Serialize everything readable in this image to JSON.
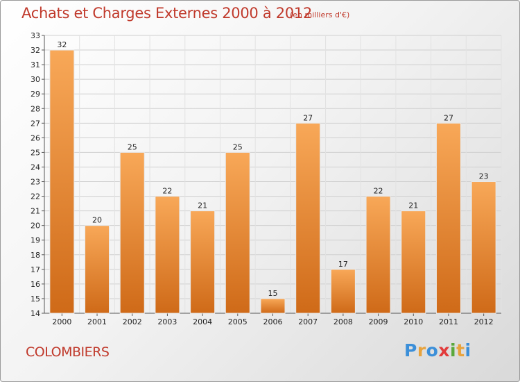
{
  "header": {
    "title": "Achats et Charges Externes 2000 à 2012",
    "subtitle": "(en milliers d'€)"
  },
  "footer": {
    "commune": "COLOMBIERS",
    "logo": "Proxiti",
    "logo_colors": [
      "#3b8fd9",
      "#e8a33d",
      "#3b8fd9",
      "#e23b3b",
      "#5aa83c",
      "#e8a33d",
      "#3b8fd9"
    ]
  },
  "chart_data": {
    "type": "bar",
    "title": "Achats et Charges Externes 2000 à 2012",
    "subtitle": "(en milliers d'€)",
    "categories": [
      "2000",
      "2001",
      "2002",
      "2003",
      "2004",
      "2005",
      "2006",
      "2007",
      "2008",
      "2009",
      "2010",
      "2011",
      "2012"
    ],
    "values": [
      32,
      20,
      25,
      22,
      21,
      25,
      15,
      27,
      17,
      22,
      21,
      27,
      23
    ],
    "xlabel": "",
    "ylabel": "",
    "ylim": [
      14,
      33
    ],
    "yticks": [
      14,
      15,
      16,
      17,
      18,
      19,
      20,
      21,
      22,
      23,
      24,
      25,
      26,
      27,
      28,
      29,
      30,
      31,
      32,
      33
    ],
    "grid": true,
    "bar_color_top": "#f8a858",
    "bar_color_bottom": "#cf6a18",
    "legend": "none"
  }
}
